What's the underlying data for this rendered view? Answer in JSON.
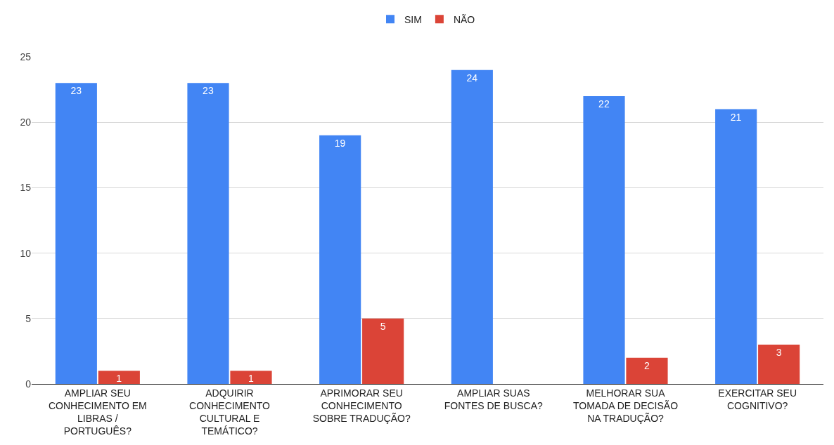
{
  "chart_data": {
    "type": "bar",
    "categories": [
      "AMPLIAR SEU CONHECIMENTO EM LIBRAS / PORTUGUÊS?",
      "ADQUIRIR CONHECIMENTO CULTURAL E TEMÁTICO?",
      "APRIMORAR SEU CONHECIMENTO SOBRE TRADUÇÃO?",
      "AMPLIAR SUAS FONTES DE BUSCA?",
      "MELHORAR SUA TOMADA DE DECISÃO NA TRADUÇÃO?",
      "EXERCITAR SEU COGNITIVO?"
    ],
    "series": [
      {
        "name": "SIM",
        "color": "#4285f4",
        "values": [
          23,
          23,
          19,
          24,
          22,
          21
        ]
      },
      {
        "name": "NÃO",
        "color": "#db4437",
        "values": [
          1,
          1,
          5,
          null,
          2,
          3
        ]
      }
    ],
    "ylim": [
      0,
      25
    ],
    "yticks": [
      0,
      5,
      10,
      15,
      20,
      25
    ],
    "grid": "y",
    "legend": "top",
    "data_labels": true
  }
}
